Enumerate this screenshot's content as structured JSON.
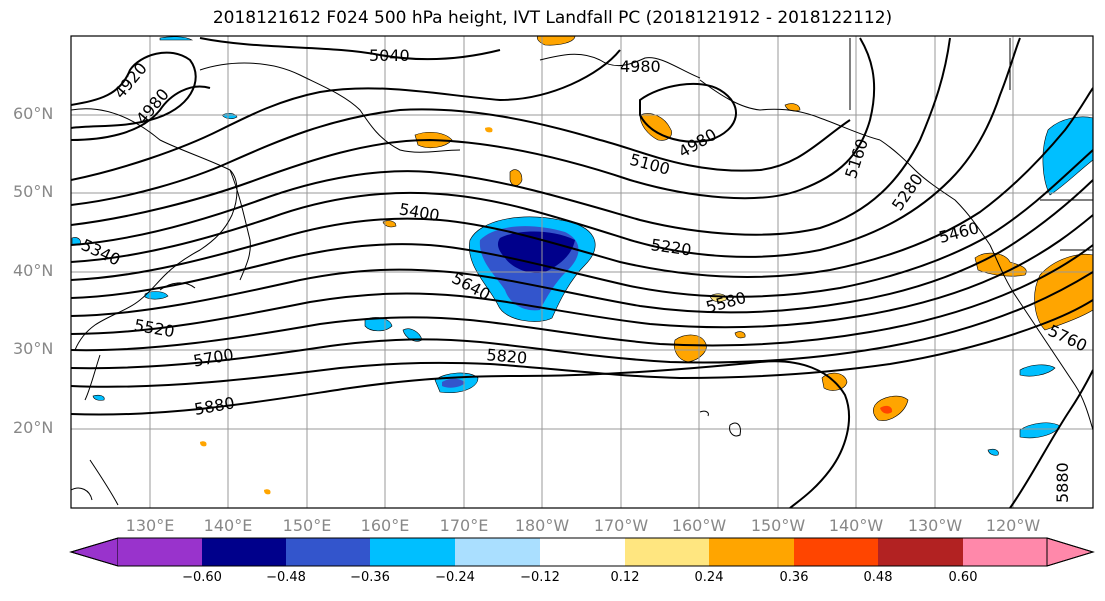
{
  "title": "2018121612 F024 500 hPa height, IVT Landfall PC (2018121912 - 2018122112)",
  "latitude_labels": [
    "60°N",
    "50°N",
    "40°N",
    "30°N",
    "20°N"
  ],
  "longitude_labels": [
    "130°E",
    "140°E",
    "150°E",
    "160°E",
    "170°E",
    "180°W",
    "170°W",
    "160°W",
    "150°W",
    "140°W",
    "130°W",
    "120°W"
  ],
  "contour_labels": [
    "4920",
    "4980",
    "5040",
    "4980",
    "4980",
    "5100",
    "5160",
    "5280",
    "5400",
    "5220",
    "5460",
    "5340",
    "5640",
    "5580",
    "5520",
    "5700",
    "5820",
    "5760",
    "5880",
    "5880"
  ],
  "colorbar": {
    "ticks": [
      "−0.60",
      "−0.48",
      "−0.36",
      "−0.24",
      "−0.12",
      "0.12",
      "0.24",
      "0.36",
      "0.48",
      "0.60"
    ],
    "colors": [
      "#9933cc",
      "#00008b",
      "#3355cc",
      "#00bfff",
      "#aadfff",
      "#ffffff",
      "#ffe680",
      "#ffa500",
      "#ff4500",
      "#b22222",
      "#ff88aa"
    ]
  }
}
